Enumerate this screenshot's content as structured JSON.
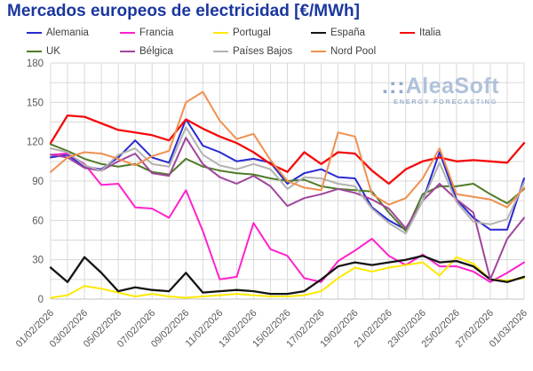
{
  "title": "Mercados europeos de electricidad [€/MWh]",
  "watermark": {
    "dots": ".::",
    "name": "AleaSoft",
    "tagline": "ENERGY FORECASTING"
  },
  "axis_colors": {
    "grid": "#d9d9d9",
    "axis_line": "#c0c0c0",
    "tick_text": "#595959"
  },
  "title_color": "#1a379f",
  "chart_data": {
    "type": "line",
    "title": "Mercados europeos de electricidad [€/MWh]",
    "ylim": [
      0,
      180
    ],
    "y_tick_step": 30,
    "y_grid_step": 15,
    "grid": true,
    "legend_position": "top",
    "n_points": 29,
    "x_label_step": 2,
    "x_labels": [
      "01/02/2026",
      "03/02/2026",
      "05/02/2026",
      "07/02/2026",
      "09/02/2026",
      "11/02/2026",
      "13/02/2026",
      "15/02/2026",
      "17/02/2026",
      "19/02/2026",
      "21/02/2026",
      "23/02/2026",
      "25/02/2026",
      "27/02/2026",
      "01/03/2026"
    ],
    "series": [
      {
        "name": "Alemania",
        "color": "#2929d1",
        "width": 2,
        "values": [
          108,
          110,
          101,
          99,
          108,
          121,
          108,
          104,
          137,
          117,
          112,
          105,
          107,
          104,
          88,
          96,
          99,
          93,
          92,
          70,
          60,
          53,
          75,
          112,
          76,
          62,
          53,
          53,
          92
        ]
      },
      {
        "name": "Francia",
        "color": "#ff22cc",
        "width": 2,
        "values": [
          110,
          111,
          103,
          87,
          88,
          70,
          69,
          62,
          83,
          52,
          15,
          17,
          58,
          38,
          33,
          16,
          13,
          29,
          37,
          46,
          33,
          26,
          34,
          25,
          25,
          21,
          13,
          20,
          28
        ]
      },
      {
        "name": "Portugal",
        "color": "#fde903",
        "width": 2,
        "values": [
          1,
          3,
          10,
          8,
          5,
          2,
          4,
          2,
          1,
          2,
          3,
          4,
          3,
          2,
          2,
          3,
          6,
          16,
          24,
          21,
          24,
          26,
          28,
          18,
          32,
          27,
          15,
          14,
          16
        ]
      },
      {
        "name": "España",
        "color": "#141414",
        "width": 2.3,
        "values": [
          24,
          13,
          32,
          20,
          6,
          9,
          7,
          6,
          20,
          5,
          6,
          7,
          6,
          4,
          4,
          6,
          15,
          25,
          28,
          26,
          28,
          30,
          33,
          28,
          29,
          25,
          15,
          13,
          17
        ]
      },
      {
        "name": "Italia",
        "color": "#f40b0b",
        "width": 2.3,
        "values": [
          119,
          140,
          139,
          134,
          129,
          127,
          125,
          121,
          137,
          130,
          124,
          119,
          112,
          103,
          97,
          112,
          103,
          112,
          111,
          98,
          88,
          99,
          105,
          108,
          105,
          106,
          105,
          104,
          119
        ]
      },
      {
        "name": "UK",
        "color": "#4f7b28",
        "width": 2,
        "values": [
          118,
          113,
          107,
          103,
          101,
          103,
          97,
          95,
          107,
          101,
          98,
          96,
          95,
          92,
          90,
          91,
          86,
          84,
          83,
          82,
          66,
          52,
          80,
          86,
          86,
          88,
          80,
          73,
          84
        ]
      },
      {
        "name": "Bélgica",
        "color": "#a0459b",
        "width": 2,
        "values": [
          110,
          108,
          100,
          98,
          105,
          111,
          96,
          94,
          123,
          103,
          93,
          88,
          94,
          86,
          71,
          77,
          80,
          84,
          81,
          76,
          69,
          54,
          75,
          88,
          76,
          66,
          15,
          46,
          62
        ]
      },
      {
        "name": "Países Bajos",
        "color": "#b2b2b2",
        "width": 2,
        "values": [
          115,
          112,
          102,
          98,
          110,
          115,
          103,
          101,
          131,
          110,
          102,
          99,
          103,
          99,
          84,
          93,
          92,
          88,
          86,
          69,
          58,
          50,
          75,
          104,
          74,
          59,
          57,
          61,
          89
        ]
      },
      {
        "name": "Nord Pool",
        "color": "#ef9150",
        "width": 2,
        "values": [
          97,
          108,
          112,
          111,
          107,
          102,
          109,
          113,
          150,
          158,
          136,
          122,
          126,
          106,
          90,
          85,
          83,
          127,
          124,
          80,
          72,
          77,
          92,
          115,
          80,
          78,
          76,
          70,
          85
        ]
      }
    ]
  }
}
